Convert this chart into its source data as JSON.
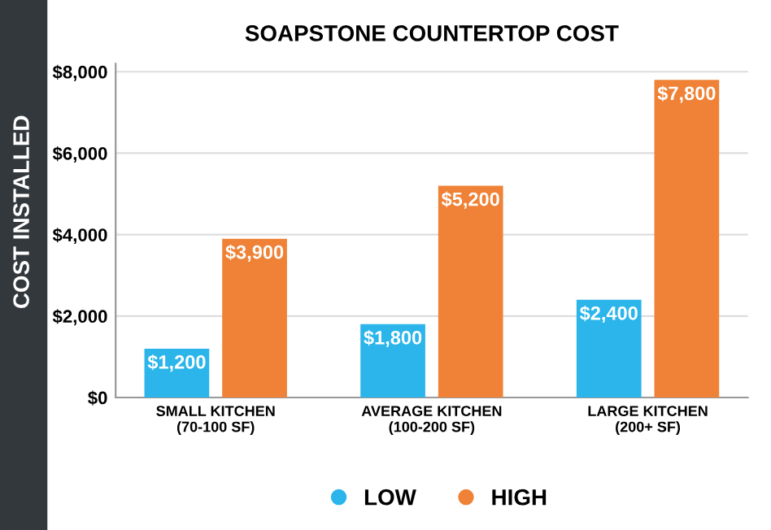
{
  "chart_data": {
    "type": "bar",
    "title": "SOAPSTONE COUNTERTOP COST",
    "ylabel": "COST INSTALLED",
    "categories": [
      "SMALL KITCHEN\n(70-100 SF)",
      "AVERAGE KITCHEN\n(100-200 SF)",
      "LARGE KITCHEN\n(200+ SF)"
    ],
    "series": [
      {
        "name": "LOW",
        "color": "#2bb5ea",
        "values": [
          1200,
          1800,
          2400
        ],
        "value_labels": [
          "$1,200",
          "$1,800",
          "$2,400"
        ]
      },
      {
        "name": "HIGH",
        "color": "#ef8236",
        "values": [
          3900,
          5200,
          7800
        ],
        "value_labels": [
          "$3,900",
          "$5,200",
          "$7,800"
        ]
      }
    ],
    "ylim": [
      0,
      8200
    ],
    "yticks": [
      {
        "value": 0,
        "label": "$0"
      },
      {
        "value": 2000,
        "label": "$2,000"
      },
      {
        "value": 4000,
        "label": "$4,000"
      },
      {
        "value": 6000,
        "label": "$6,000"
      },
      {
        "value": 8000,
        "label": "$8,000"
      }
    ],
    "grid": "y",
    "legend": "bottom"
  }
}
